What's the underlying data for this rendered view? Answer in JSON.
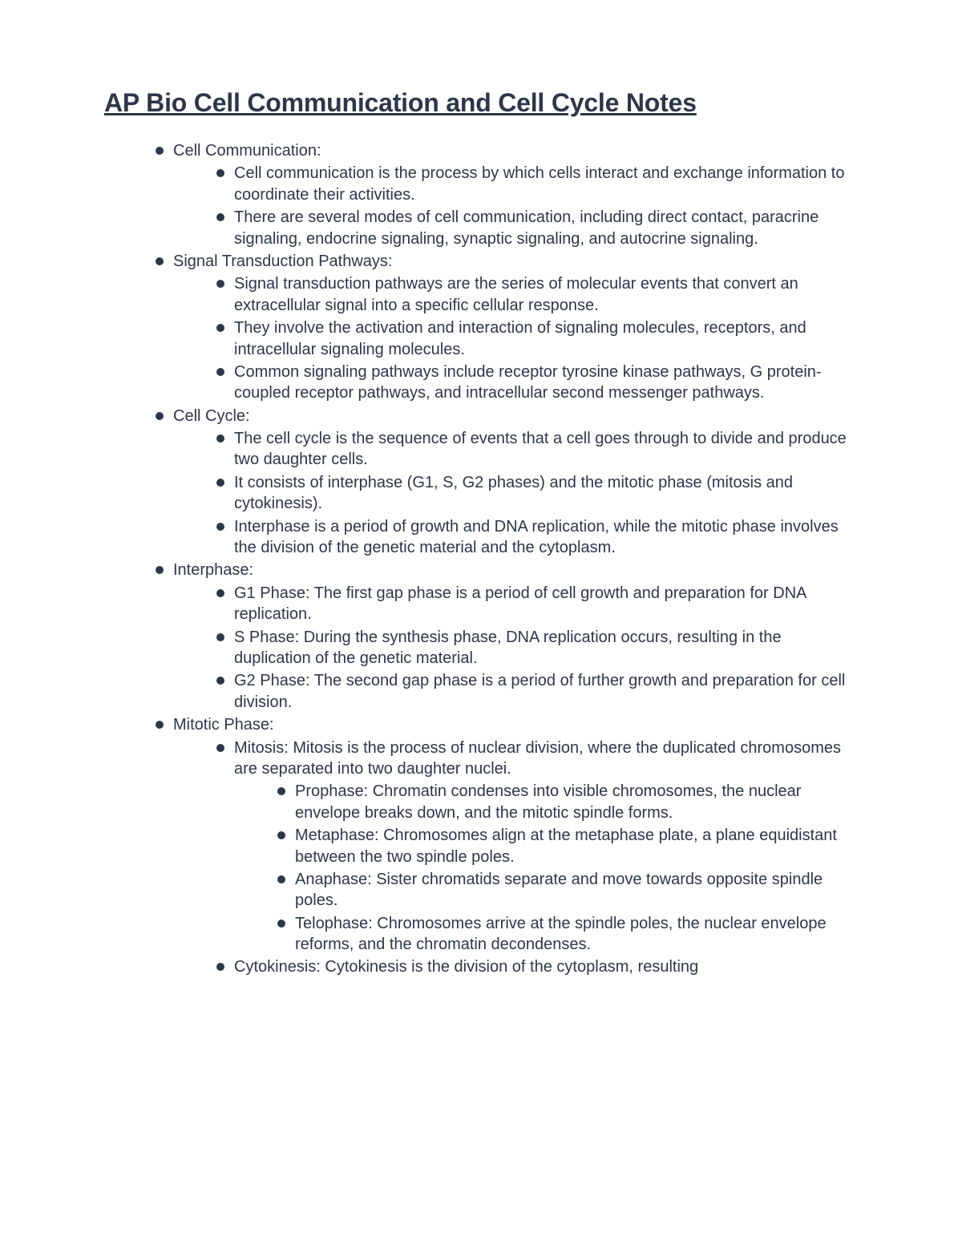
{
  "title": "AP Bio Cell Communication and Cell Cycle Notes",
  "colors": {
    "text": "#2d3748",
    "background": "#ffffff",
    "bullet": "#2d3748"
  },
  "typography": {
    "title_fontsize": 32,
    "title_weight": 700,
    "body_fontsize": 20,
    "line_height": 1.32,
    "font_family": "Arial"
  },
  "sections": [
    {
      "heading": "Cell Communication:",
      "items": [
        "Cell communication is the process by which cells interact and exchange information to coordinate their activities.",
        "There are several modes of cell communication, including direct contact, paracrine signaling, endocrine signaling, synaptic signaling, and autocrine signaling."
      ]
    },
    {
      "heading": "Signal Transduction Pathways:",
      "items": [
        "Signal transduction pathways are the series of molecular events that convert an extracellular signal into a specific cellular response.",
        "They involve the activation and interaction of signaling molecules, receptors, and intracellular signaling molecules.",
        "Common signaling pathways include receptor tyrosine kinase pathways, G protein-coupled receptor pathways, and intracellular second messenger pathways."
      ]
    },
    {
      "heading": "Cell Cycle:",
      "items": [
        "The cell cycle is the sequence of events that a cell goes through to divide and produce two daughter cells.",
        "It consists of interphase (G1, S, G2 phases) and the mitotic phase (mitosis and cytokinesis).",
        "Interphase is a period of growth and DNA replication, while the mitotic phase involves the division of the genetic material and the cytoplasm."
      ]
    },
    {
      "heading": "Interphase:",
      "items": [
        "G1 Phase: The first gap phase is a period of cell growth and preparation for DNA replication.",
        "S Phase: During the synthesis phase, DNA replication occurs, resulting in the duplication of the genetic material.",
        "G2 Phase: The second gap phase is a period of further growth and preparation for cell division."
      ]
    },
    {
      "heading": "Mitotic Phase:",
      "items": [
        {
          "text": "Mitosis: Mitosis is the process of nuclear division, where the duplicated chromosomes are separated into two daughter nuclei.",
          "subitems": [
            "Prophase: Chromatin condenses into visible chromosomes, the nuclear envelope breaks down, and the mitotic spindle forms.",
            "Metaphase: Chromosomes align at the metaphase plate, a plane equidistant between the two spindle poles.",
            "Anaphase: Sister chromatids separate and move towards opposite spindle poles.",
            "Telophase: Chromosomes arrive at the spindle poles, the nuclear envelope reforms, and the chromatin decondenses."
          ]
        },
        "Cytokinesis: Cytokinesis is the division of the cytoplasm, resulting"
      ]
    }
  ]
}
